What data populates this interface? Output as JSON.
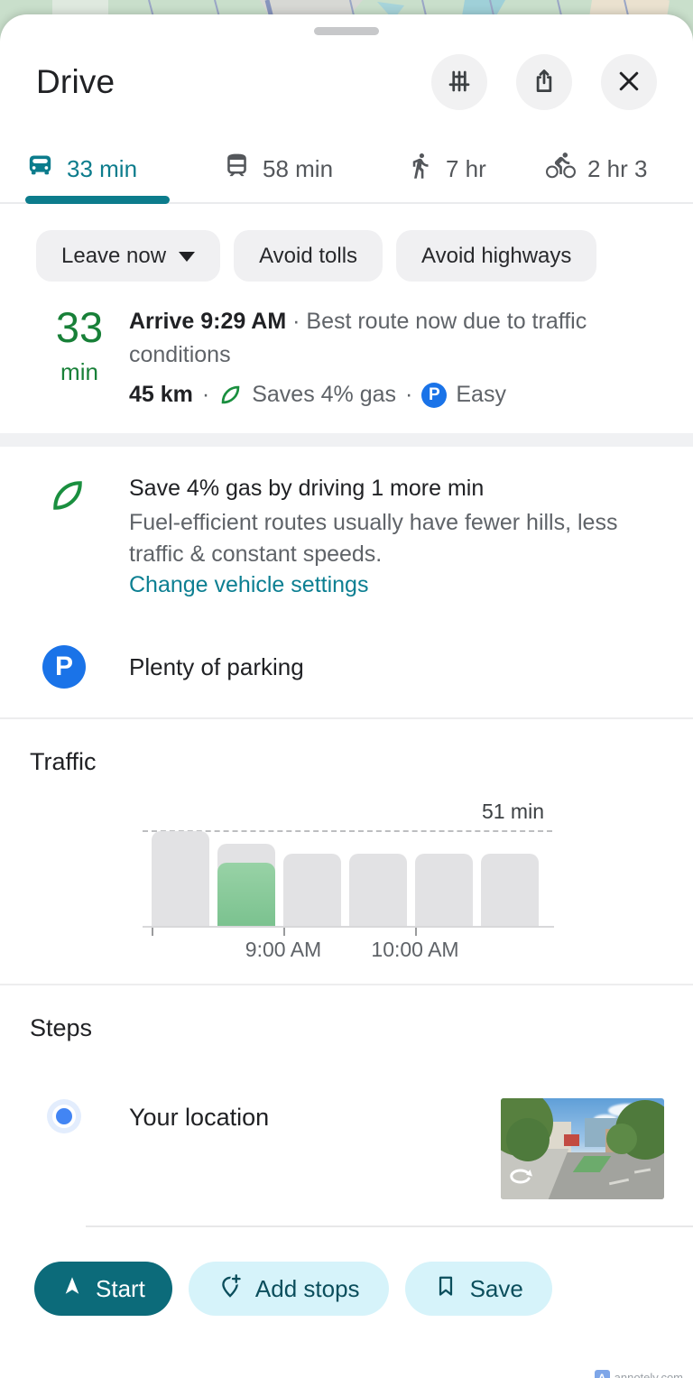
{
  "header": {
    "title": "Drive"
  },
  "tabs": [
    {
      "mode": "drive",
      "label": "33 min",
      "active": true
    },
    {
      "mode": "transit",
      "label": "58 min",
      "active": false
    },
    {
      "mode": "walk",
      "label": "7 hr",
      "active": false
    },
    {
      "mode": "bike",
      "label": "2 hr 3",
      "active": false
    }
  ],
  "chips": [
    {
      "label": "Leave now",
      "caret": true
    },
    {
      "label": "Avoid tolls"
    },
    {
      "label": "Avoid highways"
    }
  ],
  "summary": {
    "duration_value": "33",
    "duration_unit": "min",
    "arrive_bold": "Arrive 9:29 AM",
    "dot": "·",
    "arrive_note": "Best route now due to traffic conditions",
    "distance": "45 km",
    "eco_note": "Saves 4% gas",
    "parking_badge": "P",
    "parking_note": "Easy"
  },
  "eco": {
    "title": "Save 4% gas by driving 1 more min",
    "body": "Fuel-efficient routes usually have fewer hills, less traffic & constant speeds.",
    "link": "Change vehicle settings"
  },
  "parking": {
    "badge": "P",
    "label": "Plenty of parking"
  },
  "traffic": {
    "heading": "Traffic",
    "chart_data": {
      "type": "bar",
      "title": "Traffic",
      "unit": "min",
      "ylim": [
        0,
        51
      ],
      "reference": {
        "label": "51 min",
        "value": 51,
        "style": "dashed"
      },
      "bars": [
        {
          "value": 51
        },
        {
          "value": 44,
          "overlay_value": 34,
          "selected": true
        },
        {
          "value": 39
        },
        {
          "value": 39
        },
        {
          "value": 39
        },
        {
          "value": 39
        }
      ],
      "ticks": [
        {
          "bar_index": 0,
          "label": ""
        },
        {
          "bar_index": 2,
          "label": "9:00 AM"
        },
        {
          "bar_index": 4,
          "label": "10:00 AM"
        }
      ],
      "legend": "none",
      "colors": {
        "bar": "#e2e2e4",
        "selected": "#7bc28f"
      }
    }
  },
  "steps": {
    "heading": "Steps",
    "items": [
      {
        "label": "Your location"
      }
    ]
  },
  "actions": {
    "start": "Start",
    "add_stops": "Add stops",
    "save": "Save"
  },
  "watermark": {
    "icon_letter": "A",
    "label": "annotely.com"
  },
  "colors": {
    "accent_teal": "#0c7c8c",
    "eco_green": "#188038",
    "parking_blue": "#1a73e8",
    "link_teal": "#0c7f92",
    "primary_button": "#0c6b7a",
    "tonal_button": "#d6f3fa"
  }
}
